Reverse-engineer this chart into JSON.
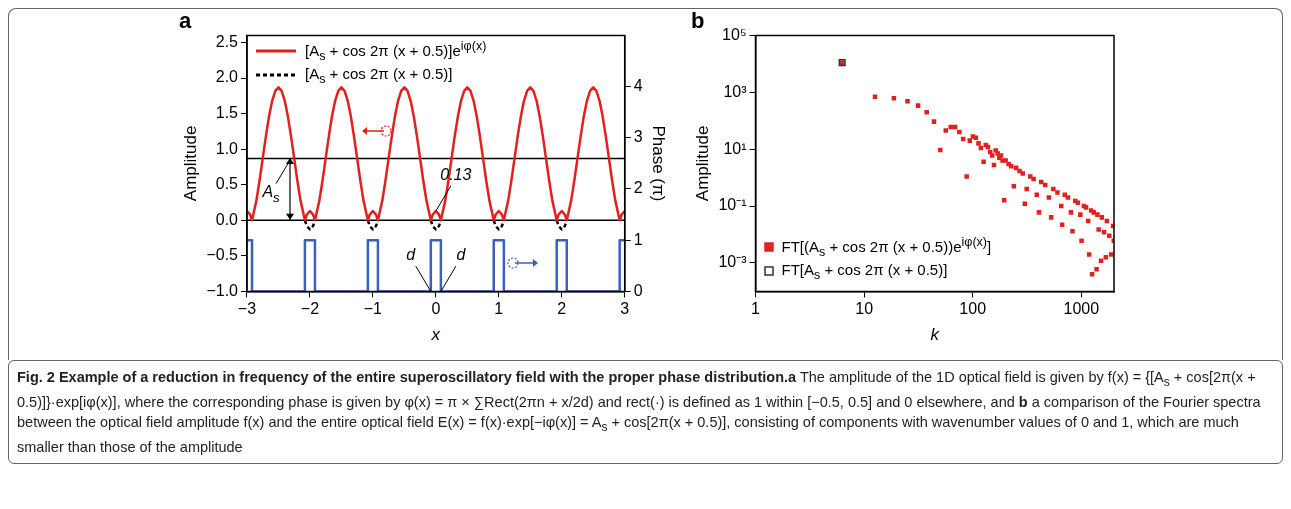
{
  "chart_data": [
    {
      "type": "line",
      "title": "a",
      "xlabel": "x",
      "ylabel": "Amplitude",
      "y2label": "Phase (π)",
      "xlim": [
        -3,
        3
      ],
      "xticks": [
        {
          "value": -3,
          "label": "−3"
        },
        {
          "value": -2,
          "label": "−2"
        },
        {
          "value": -1,
          "label": "−1"
        },
        0,
        1,
        2,
        3
      ],
      "ylim": [
        -1,
        2.6
      ],
      "yticks": [
        {
          "value": -1,
          "label": "−1.0"
        },
        {
          "value": -0.5,
          "label": "−0.5"
        },
        {
          "value": 0,
          "label": "0.0"
        },
        0.5,
        {
          "value": 1,
          "label": "1.0"
        },
        1.5,
        {
          "value": 2,
          "label": "2.0"
        },
        2.5
      ],
      "y2lim": [
        0,
        5
      ],
      "y2ticks": [
        0,
        1,
        2,
        3,
        4
      ],
      "grid": false,
      "legend": "top left",
      "ref_lines": [
        {
          "axis": "y",
          "value": 0.87,
          "color": "#000000"
        },
        {
          "axis": "y",
          "value": 0,
          "color": "#000000"
        }
      ],
      "annotations": [
        {
          "text": "A$_{s}$",
          "x": -2.3,
          "y": 0.87
        },
        {
          "text": "0.13",
          "x": 0,
          "y": 0.13
        },
        {
          "text": "d",
          "x": -0.08,
          "y": -1
        },
        {
          "text": "d",
          "x": 0.08,
          "y": -1
        }
      ],
      "series": [
        {
          "name": "[A$_{s}$ + cos 2π (x + 0.5)]e$^{iφ(x)}$",
          "color": "#e0211d",
          "x": [
            -3,
            -2.95,
            -2.92,
            -2.85,
            -2.8,
            -2.75,
            -2.7,
            -2.65,
            -2.6,
            -2.55,
            -2.5,
            -2.45,
            -2.4,
            -2.35,
            -2.3,
            -2.25,
            -2.2,
            -2.15,
            -2.08,
            -2.05,
            -2,
            -1.95,
            -1.92,
            -1.85,
            -1.8,
            -1.75,
            -1.7,
            -1.65,
            -1.6,
            -1.55,
            -1.5,
            -1.45,
            -1.4,
            -1.35,
            -1.3,
            -1.25,
            -1.2,
            -1.15,
            -1.08,
            -1.05,
            -1,
            -0.95,
            -0.92,
            -0.85,
            -0.8,
            -0.75,
            -0.7,
            -0.65,
            -0.6,
            -0.55,
            -0.5,
            -0.45,
            -0.4,
            -0.35,
            -0.3,
            -0.25,
            -0.2,
            -0.15,
            -0.08,
            -0.05,
            0,
            0.05,
            0.08,
            0.15,
            0.2,
            0.25,
            0.3,
            0.35,
            0.4,
            0.45,
            0.5,
            0.55,
            0.6,
            0.65,
            0.7,
            0.75,
            0.8,
            0.85,
            0.92,
            0.95,
            1,
            1.05,
            1.08,
            1.15,
            1.2,
            1.25,
            1.3,
            1.35,
            1.4,
            1.45,
            1.5,
            1.55,
            1.6,
            1.65,
            1.7,
            1.75,
            1.8,
            1.85,
            1.92,
            1.95,
            2,
            2.05,
            2.08,
            2.15,
            2.2,
            2.25,
            2.3,
            2.35,
            2.4,
            2.45,
            2.5,
            2.55,
            2.6,
            2.65,
            2.7,
            2.75,
            2.8,
            2.85,
            2.92,
            2.95,
            3
          ],
          "values": [
            0.13,
            0.08,
            0,
            0.28,
            0.56,
            0.87,
            1.18,
            1.46,
            1.68,
            1.82,
            1.87,
            1.82,
            1.68,
            1.46,
            1.18,
            0.87,
            0.56,
            0.28,
            0,
            0.08,
            0.13,
            0.08,
            0,
            0.28,
            0.56,
            0.87,
            1.18,
            1.46,
            1.68,
            1.82,
            1.87,
            1.82,
            1.68,
            1.46,
            1.18,
            0.87,
            0.56,
            0.28,
            0,
            0.08,
            0.13,
            0.08,
            0,
            0.28,
            0.56,
            0.87,
            1.18,
            1.46,
            1.68,
            1.82,
            1.87,
            1.82,
            1.68,
            1.46,
            1.18,
            0.87,
            0.56,
            0.28,
            0,
            0.08,
            0.13,
            0.08,
            0,
            0.28,
            0.56,
            0.87,
            1.18,
            1.46,
            1.68,
            1.82,
            1.87,
            1.82,
            1.68,
            1.46,
            1.18,
            0.87,
            0.56,
            0.28,
            0,
            0.08,
            0.13,
            0.08,
            0,
            0.28,
            0.56,
            0.87,
            1.18,
            1.46,
            1.68,
            1.82,
            1.87,
            1.82,
            1.68,
            1.46,
            1.18,
            0.87,
            0.56,
            0.28,
            0,
            0.08,
            0.13,
            0.08,
            0,
            0.28,
            0.56,
            0.87,
            1.18,
            1.46,
            1.68,
            1.82,
            1.87,
            1.82,
            1.68,
            1.46,
            1.18,
            0.87,
            0.56,
            0.28,
            0,
            0.08,
            0.13
          ]
        },
        {
          "name": "[A$_{s}$ + cos 2π (x + 0.5)]",
          "color": "#000000",
          "line_style": "dashed",
          "x": [
            -2.08,
            -2.05,
            -2,
            -1.95,
            -1.92,
            -1.5,
            -1.08,
            -1.05,
            -1,
            -0.95,
            -0.92,
            -0.5,
            -0.08,
            -0.05,
            0,
            0.05,
            0.08,
            0.5,
            0.92,
            0.95,
            1,
            1.05,
            1.08,
            1.5,
            1.92,
            1.95,
            2,
            2.05,
            2.08
          ],
          "values": [
            0,
            -0.08,
            -0.13,
            -0.08,
            0,
            null,
            0,
            -0.08,
            -0.13,
            -0.08,
            0,
            null,
            0,
            -0.08,
            -0.13,
            -0.08,
            0,
            null,
            0,
            -0.08,
            -0.13,
            -0.08,
            0,
            null,
            0,
            -0.08,
            -0.13,
            -0.08,
            0
          ]
        },
        {
          "color": "#3a5fbf",
          "axis": "y2",
          "x": [
            -3,
            -2.92,
            -2.92,
            -2.08,
            -2.08,
            -1.92,
            -1.92,
            -1.08,
            -1.08,
            -0.92,
            -0.92,
            -0.08,
            -0.08,
            0.08,
            0.08,
            0.92,
            0.92,
            1.08,
            1.08,
            1.92,
            1.92,
            2.08,
            2.08,
            2.92,
            2.92,
            3
          ],
          "values": [
            1,
            1,
            0,
            0,
            1,
            1,
            0,
            0,
            1,
            1,
            0,
            0,
            1,
            1,
            0,
            0,
            1,
            1,
            0,
            0,
            1,
            1,
            0,
            0,
            1,
            1
          ]
        }
      ]
    },
    {
      "type": "scatter",
      "title": "b",
      "xlabel": "k",
      "ylabel": "Amplitude",
      "log": "xy",
      "xlim": [
        1,
        2000
      ],
      "xticks": [
        1,
        10,
        100,
        1000
      ],
      "ylim": [
        0.0001,
        100000
      ],
      "yticks": [
        {
          "value": 100000,
          "label": "10⁵"
        },
        {
          "value": 1000,
          "label": "10³"
        },
        {
          "value": 10,
          "label": "10¹"
        },
        {
          "value": 0.1,
          "label": "10⁻¹"
        },
        {
          "value": 0.001,
          "label": "10⁻³"
        }
      ],
      "grid": false,
      "legend": "bottom left",
      "marker": "square",
      "series": [
        {
          "name": "FT[(A$_{s}$ + cos 2π (x + 0.5))e$^{iφ(x)}$]",
          "color": "#e0211d",
          "x": [
            6.28,
            12.6,
            18.8,
            25.1,
            31.4,
            37.7,
            44,
            50.3,
            56.5,
            62.8,
            69,
            75.4,
            81.7,
            88,
            94,
            100.5,
            107,
            113,
            119,
            126,
            132,
            138,
            145,
            151,
            157,
            163,
            170,
            176,
            182,
            188,
            195,
            201,
            214,
            226,
            239,
            251,
            270,
            289,
            302,
            314,
            339,
            364,
            389,
            408,
            427,
            465,
            503,
            528,
            553,
            603,
            653,
            666,
            704,
            754,
            804,
            829,
            880,
            930,
            980,
            1005,
            1056,
            1106,
            1156,
            1181,
            1232,
            1257,
            1300,
            1382,
            1407,
            1445,
            1520,
            1545,
            1620,
            1683,
            1720,
            1810,
            1885,
            1960,
            1990
          ],
          "values": [
            11000,
            700,
            620,
            480,
            340,
            200,
            93,
            9.3,
            45,
            60,
            60,
            40,
            23,
            1.1,
            20,
            28,
            25,
            16,
            11,
            3.6,
            14,
            12,
            8,
            6,
            2.8,
            9,
            7,
            5,
            6,
            4,
            0.16,
            4,
            3,
            2.5,
            0.5,
            2.2,
            1.7,
            1.4,
            0.12,
            0.4,
            1.1,
            0.9,
            0.25,
            0.06,
            0.7,
            0.55,
            0.2,
            0.04,
            0.4,
            0.3,
            0.1,
            0.022,
            0.25,
            0.2,
            0.06,
            0.013,
            0.15,
            0.13,
            0.05,
            0.006,
            0.1,
            0.09,
            0.03,
            0.002,
            0.07,
            0.0004,
            0.06,
            0.0006,
            0.05,
            0.015,
            0.0012,
            0.04,
            0.012,
            0.0016,
            0.03,
            0.009,
            0.002,
            0.02,
            0.006
          ]
        },
        {
          "name": "FT[A$_{s}$ + cos 2π (x + 0.5)]",
          "color": "#333333",
          "x": [
            6.28
          ],
          "values": [
            11000
          ]
        }
      ]
    },
    {
      "type": "other",
      "title": "Fig. 2 Example of a reduction in frequency of the entire superoscillatory field with the proper phase distribution.",
      "annotations": [
        "a",
        " The amplitude of the 1D optical field is given by f(x) = {[A$_{s}$ + cos[2π(x + 0.5)]}·exp[iφ(x)], where the corresponding phase is given by φ(x) = π × ∑Rect(2πn + x/2d) and rect(·) is defined as 1 within [−0.5, 0.5] and 0 elsewhere, and ",
        "b",
        " a comparison of the Fourier spectra between the optical field amplitude f(x) and the entire optical field E(x) = f(x)·exp[−iφ(x)] = A$_{s}$ + cos[2π(x + 0.5)], consisting of components with wavenumber values of 0 and 1, which are much smaller than those of the amplitude"
      ]
    }
  ]
}
